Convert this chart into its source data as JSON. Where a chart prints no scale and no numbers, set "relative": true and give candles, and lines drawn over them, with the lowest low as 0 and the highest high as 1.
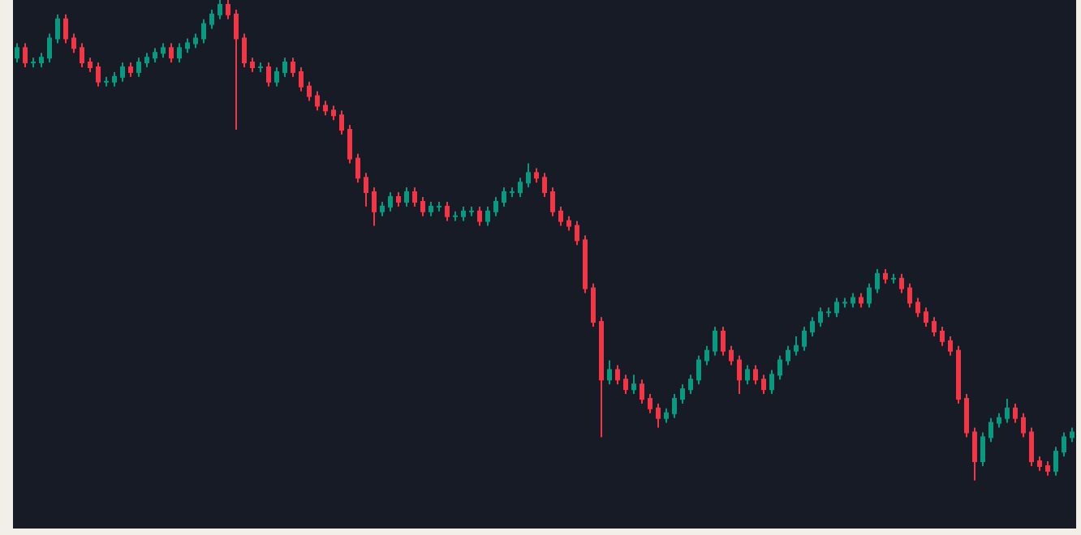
{
  "chart_data": {
    "type": "candlestick",
    "relative": true,
    "categories": [
      null,
      null,
      null,
      null,
      null,
      null,
      null,
      null,
      null,
      null,
      null,
      null,
      null,
      null,
      null,
      null,
      null,
      null,
      null,
      null,
      null,
      null,
      null,
      null,
      null,
      null,
      null,
      null,
      null,
      null,
      null,
      null,
      null,
      null,
      null,
      null,
      null,
      null,
      null,
      null,
      null,
      null,
      null,
      null,
      null,
      null,
      null,
      null,
      null,
      null,
      null,
      null,
      null,
      null,
      null,
      null,
      null,
      null,
      null,
      null,
      null,
      null,
      null,
      null,
      null,
      null,
      null,
      null,
      null,
      null,
      null,
      null,
      null,
      null,
      null,
      null,
      null,
      null,
      null,
      null,
      null,
      null,
      null,
      null,
      null,
      null,
      null,
      null,
      null,
      null,
      null,
      null,
      null,
      null,
      null,
      null,
      null,
      null,
      null,
      null,
      null,
      null,
      null,
      null,
      null,
      null,
      null,
      null,
      null,
      null,
      null,
      null,
      null,
      null,
      null,
      null,
      null,
      null,
      null,
      null,
      null,
      null,
      null,
      null,
      null,
      null,
      null,
      null,
      null,
      null,
      null
    ],
    "ohlc": [
      [
        0.88,
        0.91,
        0.87,
        0.9
      ],
      [
        0.9,
        0.91,
        0.86,
        0.87
      ],
      [
        0.87,
        0.88,
        0.86,
        0.87
      ],
      [
        0.87,
        0.89,
        0.86,
        0.88
      ],
      [
        0.88,
        0.93,
        0.87,
        0.92
      ],
      [
        0.92,
        0.97,
        0.91,
        0.96
      ],
      [
        0.96,
        0.97,
        0.91,
        0.92
      ],
      [
        0.92,
        0.93,
        0.89,
        0.9
      ],
      [
        0.9,
        0.91,
        0.86,
        0.87
      ],
      [
        0.87,
        0.88,
        0.85,
        0.86
      ],
      [
        0.86,
        0.87,
        0.82,
        0.83
      ],
      [
        0.83,
        0.84,
        0.82,
        0.83
      ],
      [
        0.83,
        0.85,
        0.82,
        0.84
      ],
      [
        0.84,
        0.87,
        0.83,
        0.86
      ],
      [
        0.86,
        0.87,
        0.84,
        0.85
      ],
      [
        0.85,
        0.88,
        0.84,
        0.87
      ],
      [
        0.87,
        0.89,
        0.86,
        0.88
      ],
      [
        0.88,
        0.9,
        0.87,
        0.89
      ],
      [
        0.89,
        0.91,
        0.88,
        0.9
      ],
      [
        0.9,
        0.91,
        0.87,
        0.88
      ],
      [
        0.88,
        0.91,
        0.87,
        0.9
      ],
      [
        0.9,
        0.92,
        0.89,
        0.91
      ],
      [
        0.91,
        0.93,
        0.9,
        0.92
      ],
      [
        0.92,
        0.96,
        0.91,
        0.95
      ],
      [
        0.95,
        0.98,
        0.94,
        0.97
      ],
      [
        0.97,
        1.0,
        0.96,
        0.99
      ],
      [
        0.99,
        1.0,
        0.96,
        0.97
      ],
      [
        0.97,
        0.98,
        0.73,
        0.92
      ],
      [
        0.92,
        0.93,
        0.86,
        0.87
      ],
      [
        0.87,
        0.88,
        0.85,
        0.86
      ],
      [
        0.86,
        0.87,
        0.85,
        0.86
      ],
      [
        0.86,
        0.87,
        0.82,
        0.83
      ],
      [
        0.83,
        0.86,
        0.82,
        0.85
      ],
      [
        0.85,
        0.88,
        0.84,
        0.87
      ],
      [
        0.87,
        0.88,
        0.84,
        0.85
      ],
      [
        0.85,
        0.86,
        0.81,
        0.82
      ],
      [
        0.82,
        0.83,
        0.79,
        0.8
      ],
      [
        0.8,
        0.81,
        0.77,
        0.78
      ],
      [
        0.78,
        0.79,
        0.76,
        0.77
      ],
      [
        0.77,
        0.78,
        0.75,
        0.76
      ],
      [
        0.76,
        0.77,
        0.72,
        0.73
      ],
      [
        0.73,
        0.74,
        0.66,
        0.67
      ],
      [
        0.67,
        0.68,
        0.62,
        0.63
      ],
      [
        0.63,
        0.64,
        0.57,
        0.6
      ],
      [
        0.6,
        0.61,
        0.53,
        0.56
      ],
      [
        0.56,
        0.58,
        0.55,
        0.57
      ],
      [
        0.57,
        0.6,
        0.56,
        0.59
      ],
      [
        0.59,
        0.6,
        0.57,
        0.58
      ],
      [
        0.58,
        0.61,
        0.57,
        0.6
      ],
      [
        0.6,
        0.61,
        0.57,
        0.58
      ],
      [
        0.58,
        0.59,
        0.55,
        0.56
      ],
      [
        0.56,
        0.58,
        0.55,
        0.57
      ],
      [
        0.57,
        0.58,
        0.56,
        0.57
      ],
      [
        0.57,
        0.58,
        0.54,
        0.55
      ],
      [
        0.55,
        0.56,
        0.54,
        0.55
      ],
      [
        0.55,
        0.57,
        0.54,
        0.56
      ],
      [
        0.56,
        0.57,
        0.55,
        0.56
      ],
      [
        0.56,
        0.57,
        0.53,
        0.54
      ],
      [
        0.54,
        0.57,
        0.53,
        0.56
      ],
      [
        0.56,
        0.59,
        0.55,
        0.58
      ],
      [
        0.58,
        0.61,
        0.57,
        0.6
      ],
      [
        0.6,
        0.61,
        0.59,
        0.6
      ],
      [
        0.6,
        0.63,
        0.59,
        0.62
      ],
      [
        0.62,
        0.66,
        0.61,
        0.64
      ],
      [
        0.64,
        0.65,
        0.62,
        0.63
      ],
      [
        0.63,
        0.64,
        0.59,
        0.6
      ],
      [
        0.6,
        0.61,
        0.55,
        0.56
      ],
      [
        0.56,
        0.57,
        0.53,
        0.54
      ],
      [
        0.54,
        0.55,
        0.52,
        0.53
      ],
      [
        0.53,
        0.54,
        0.49,
        0.5
      ],
      [
        0.5,
        0.51,
        0.39,
        0.4
      ],
      [
        0.4,
        0.41,
        0.32,
        0.33
      ],
      [
        0.33,
        0.34,
        0.09,
        0.21
      ],
      [
        0.21,
        0.25,
        0.2,
        0.23
      ],
      [
        0.23,
        0.24,
        0.2,
        0.21
      ],
      [
        0.21,
        0.22,
        0.18,
        0.19
      ],
      [
        0.19,
        0.22,
        0.18,
        0.2
      ],
      [
        0.2,
        0.21,
        0.16,
        0.17
      ],
      [
        0.17,
        0.18,
        0.14,
        0.15
      ],
      [
        0.15,
        0.16,
        0.11,
        0.13
      ],
      [
        0.13,
        0.15,
        0.12,
        0.14
      ],
      [
        0.14,
        0.18,
        0.13,
        0.17
      ],
      [
        0.17,
        0.2,
        0.16,
        0.19
      ],
      [
        0.19,
        0.22,
        0.18,
        0.21
      ],
      [
        0.21,
        0.26,
        0.2,
        0.25
      ],
      [
        0.25,
        0.28,
        0.24,
        0.27
      ],
      [
        0.27,
        0.32,
        0.26,
        0.31
      ],
      [
        0.31,
        0.32,
        0.26,
        0.27
      ],
      [
        0.27,
        0.28,
        0.24,
        0.25
      ],
      [
        0.25,
        0.26,
        0.18,
        0.21
      ],
      [
        0.21,
        0.24,
        0.2,
        0.23
      ],
      [
        0.23,
        0.24,
        0.2,
        0.21
      ],
      [
        0.21,
        0.22,
        0.18,
        0.19
      ],
      [
        0.19,
        0.23,
        0.18,
        0.22
      ],
      [
        0.22,
        0.26,
        0.21,
        0.25
      ],
      [
        0.25,
        0.28,
        0.24,
        0.27
      ],
      [
        0.27,
        0.3,
        0.26,
        0.28
      ],
      [
        0.28,
        0.32,
        0.27,
        0.31
      ],
      [
        0.31,
        0.34,
        0.3,
        0.33
      ],
      [
        0.33,
        0.36,
        0.32,
        0.35
      ],
      [
        0.35,
        0.36,
        0.34,
        0.35
      ],
      [
        0.35,
        0.38,
        0.34,
        0.37
      ],
      [
        0.37,
        0.38,
        0.36,
        0.37
      ],
      [
        0.37,
        0.39,
        0.36,
        0.38
      ],
      [
        0.38,
        0.39,
        0.36,
        0.37
      ],
      [
        0.37,
        0.41,
        0.36,
        0.4
      ],
      [
        0.4,
        0.44,
        0.39,
        0.43
      ],
      [
        0.43,
        0.44,
        0.41,
        0.42
      ],
      [
        0.42,
        0.43,
        0.41,
        0.42
      ],
      [
        0.42,
        0.43,
        0.39,
        0.4
      ],
      [
        0.4,
        0.41,
        0.36,
        0.37
      ],
      [
        0.37,
        0.38,
        0.34,
        0.35
      ],
      [
        0.35,
        0.36,
        0.32,
        0.33
      ],
      [
        0.33,
        0.34,
        0.3,
        0.31
      ],
      [
        0.31,
        0.32,
        0.28,
        0.29
      ],
      [
        0.29,
        0.3,
        0.26,
        0.27
      ],
      [
        0.27,
        0.28,
        0.16,
        0.17
      ],
      [
        0.17,
        0.18,
        0.09,
        0.1
      ],
      [
        0.1,
        0.11,
        0.0,
        0.04
      ],
      [
        0.04,
        0.1,
        0.03,
        0.09
      ],
      [
        0.09,
        0.13,
        0.08,
        0.12
      ],
      [
        0.12,
        0.14,
        0.11,
        0.13
      ],
      [
        0.13,
        0.17,
        0.12,
        0.15
      ],
      [
        0.15,
        0.16,
        0.12,
        0.13
      ],
      [
        0.13,
        0.14,
        0.09,
        0.1
      ],
      [
        0.1,
        0.11,
        0.03,
        0.04
      ],
      [
        0.04,
        0.05,
        0.02,
        0.03
      ],
      [
        0.03,
        0.04,
        0.01,
        0.02
      ],
      [
        0.02,
        0.07,
        0.01,
        0.06
      ],
      [
        0.06,
        0.1,
        0.05,
        0.09
      ],
      [
        0.09,
        0.11,
        0.08,
        0.1
      ]
    ]
  }
}
